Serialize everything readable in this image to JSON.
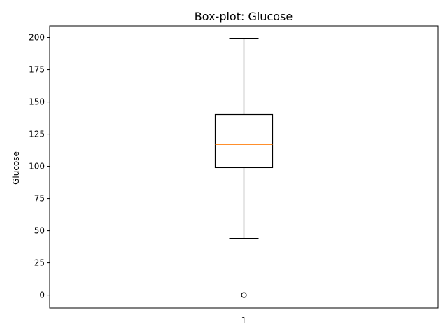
{
  "chart_data": {
    "type": "box",
    "title": "Box-plot: Glucose",
    "xlabel": "",
    "ylabel": "Glucose",
    "ylim": [
      -10,
      209
    ],
    "yticks": [
      0,
      25,
      50,
      75,
      100,
      125,
      150,
      175,
      200
    ],
    "categories": [
      "1"
    ],
    "boxes": [
      {
        "category": "1",
        "whisker_low": 44,
        "q1": 99,
        "median": 117,
        "q3": 140.25,
        "whisker_high": 199,
        "outliers": [
          0
        ]
      }
    ],
    "grid": false,
    "colors": {
      "box": "#000000",
      "median": "#ff7f0e",
      "whisker": "#000000",
      "outlier": "#000000"
    }
  }
}
